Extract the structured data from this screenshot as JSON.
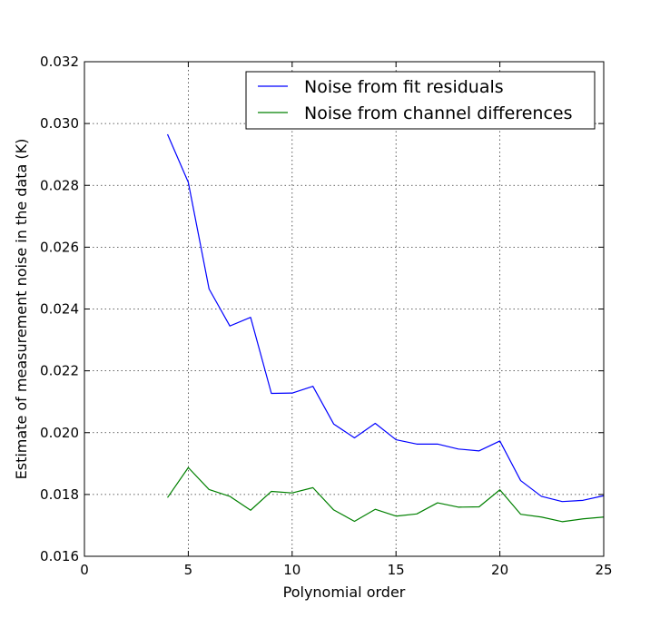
{
  "chart_data": {
    "type": "line",
    "title": "",
    "xlabel": "Polynomial order",
    "ylabel": "Estimate of measurement noise in the data (K)",
    "xlim": [
      0,
      25
    ],
    "ylim": [
      0.016,
      0.032
    ],
    "xticks": [
      0,
      5,
      10,
      15,
      20,
      25
    ],
    "xtick_labels": [
      "0",
      "5",
      "10",
      "15",
      "20",
      "25"
    ],
    "yticks": [
      0.016,
      0.018,
      0.02,
      0.022,
      0.024,
      0.026,
      0.028,
      0.03,
      0.032
    ],
    "ytick_labels": [
      "0.016",
      "0.018",
      "0.020",
      "0.022",
      "0.024",
      "0.026",
      "0.028",
      "0.030",
      "0.032"
    ],
    "grid": true,
    "legend_position": "top-right",
    "x": [
      4,
      5,
      6,
      7,
      8,
      9,
      10,
      11,
      12,
      13,
      14,
      15,
      16,
      17,
      18,
      19,
      20,
      21,
      22,
      23,
      24,
      25
    ],
    "series": [
      {
        "name": "Noise from fit residuals",
        "color": "#0000ff",
        "values": [
          0.02965,
          0.0281,
          0.02465,
          0.02345,
          0.02373,
          0.02127,
          0.02128,
          0.0215,
          0.02028,
          0.01983,
          0.0203,
          0.01977,
          0.01963,
          0.01963,
          0.01947,
          0.01941,
          0.01973,
          0.01845,
          0.01794,
          0.01777,
          0.01781,
          0.01796
        ]
      },
      {
        "name": "Noise from channel differences",
        "color": "#008000",
        "values": [
          0.0179,
          0.01887,
          0.01816,
          0.01794,
          0.01749,
          0.0181,
          0.01805,
          0.01822,
          0.0175,
          0.01713,
          0.01752,
          0.0173,
          0.01737,
          0.01773,
          0.01759,
          0.0176,
          0.01815,
          0.01736,
          0.01727,
          0.01712,
          0.01721,
          0.01727
        ]
      }
    ]
  }
}
